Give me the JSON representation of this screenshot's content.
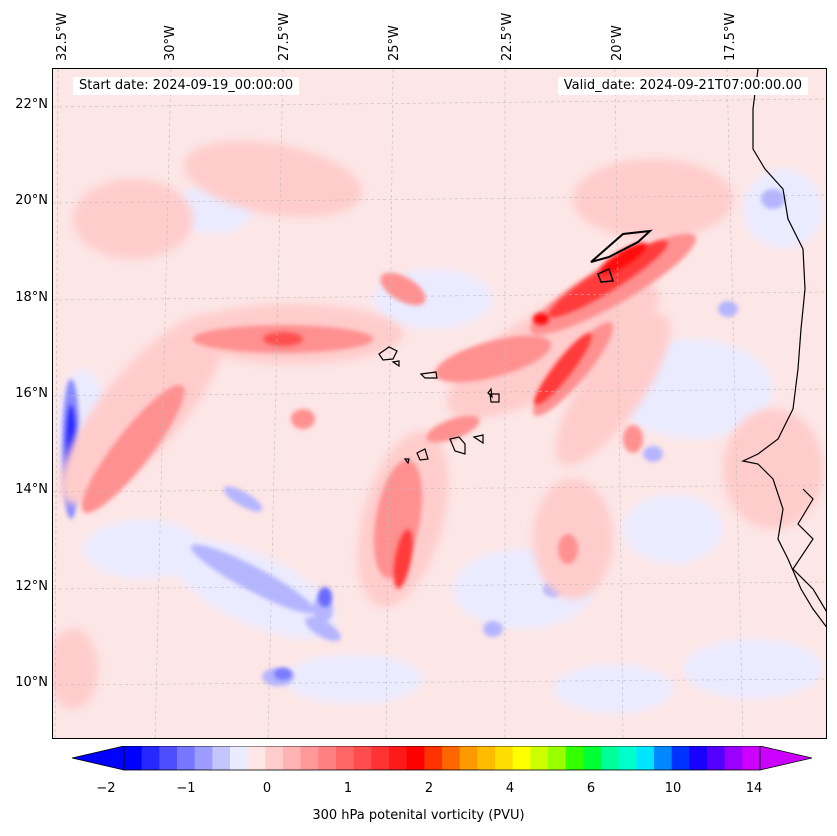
{
  "map": {
    "start_date": "Start date: 2024-09-19_00:00:00",
    "valid_date": "Valid_date: 2024-09-21T07:00:00.00",
    "lon_labels": [
      "32.5°W",
      "30°W",
      "27.5°W",
      "25°W",
      "22.5°W",
      "20°W",
      "17.5°W"
    ],
    "lat_labels": [
      "22°N",
      "20°N",
      "18°N",
      "16°N",
      "14°N",
      "12°N",
      "10°N"
    ]
  },
  "colorbar": {
    "label": "300 hPa potenital vorticity (PVU)",
    "tick_labels": [
      "−2",
      "−1",
      "0",
      "1",
      "2",
      "4",
      "6",
      "10",
      "14"
    ],
    "colors": [
      "#0000ff",
      "#2727ff",
      "#4e4eff",
      "#7676ff",
      "#9d9dff",
      "#c4c4ff",
      "#ebebff",
      "#ffe6e6",
      "#ffcccc",
      "#ffb3b3",
      "#ff9999",
      "#ff8080",
      "#ff6666",
      "#ff4d4d",
      "#ff3333",
      "#ff1a1a",
      "#ff0000",
      "#ff3300",
      "#ff6600",
      "#ff9900",
      "#ffbb00",
      "#ffdd00",
      "#ffff00",
      "#ccff00",
      "#99ff00",
      "#33ff00",
      "#00ff33",
      "#00ff99",
      "#00ffcc",
      "#00e5ff",
      "#0088ff",
      "#0033ff",
      "#1a00ff",
      "#5500ff",
      "#9900ff",
      "#cc00ff"
    ],
    "min_color": "#0000ff",
    "max_color": "#cc00ff"
  },
  "colors": {
    "background_pv": "#fde6e6",
    "neg_light": "#ebebff",
    "neg_mid": "#b5b5ff",
    "neg_strong": "#2b2bff",
    "pos_light": "#ffcccc",
    "pos_mid": "#ff9090",
    "pos_strong": "#ff3a3a",
    "pos_max": "#ff1010"
  }
}
